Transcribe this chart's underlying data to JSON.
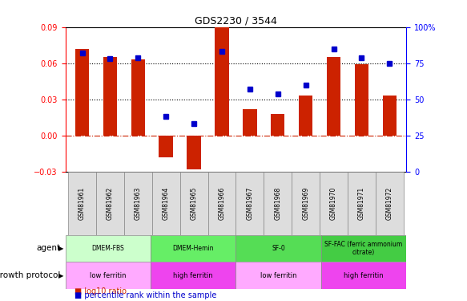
{
  "title": "GDS2230 / 3544",
  "samples": [
    "GSM81961",
    "GSM81962",
    "GSM81963",
    "GSM81964",
    "GSM81965",
    "GSM81966",
    "GSM81967",
    "GSM81968",
    "GSM81969",
    "GSM81970",
    "GSM81971",
    "GSM81972"
  ],
  "log10_ratio": [
    0.072,
    0.065,
    0.063,
    -0.018,
    -0.028,
    0.09,
    0.022,
    0.018,
    0.033,
    0.065,
    0.059,
    0.033
  ],
  "percentile": [
    82,
    78,
    79,
    38,
    33,
    83,
    57,
    54,
    60,
    85,
    79,
    75
  ],
  "bar_color": "#cc2200",
  "dot_color": "#0000cc",
  "ylim_left": [
    -0.03,
    0.09
  ],
  "ylim_right": [
    0,
    100
  ],
  "yticks_left": [
    -0.03,
    0,
    0.03,
    0.06,
    0.09
  ],
  "yticks_right": [
    0,
    25,
    50,
    75,
    100
  ],
  "ytick_labels_right": [
    "0",
    "25",
    "50",
    "75",
    "100%"
  ],
  "hline_y": [
    0.03,
    0.06
  ],
  "agent_groups": [
    {
      "label": "DMEM-FBS",
      "start": 0,
      "end": 3,
      "color": "#ccffcc"
    },
    {
      "label": "DMEM-Hemin",
      "start": 3,
      "end": 6,
      "color": "#66ee66"
    },
    {
      "label": "SF-0",
      "start": 6,
      "end": 9,
      "color": "#55dd55"
    },
    {
      "label": "SF-FAC (ferric ammonium\ncitrate)",
      "start": 9,
      "end": 12,
      "color": "#44cc44"
    }
  ],
  "growth_groups": [
    {
      "label": "low ferritin",
      "start": 0,
      "end": 3,
      "color": "#ffaaff"
    },
    {
      "label": "high ferritin",
      "start": 3,
      "end": 6,
      "color": "#ee44ee"
    },
    {
      "label": "low ferritin",
      "start": 6,
      "end": 9,
      "color": "#ffaaff"
    },
    {
      "label": "high ferritin",
      "start": 9,
      "end": 12,
      "color": "#ee44ee"
    }
  ],
  "legend_bar_color": "#cc2200",
  "legend_dot_color": "#0000cc"
}
